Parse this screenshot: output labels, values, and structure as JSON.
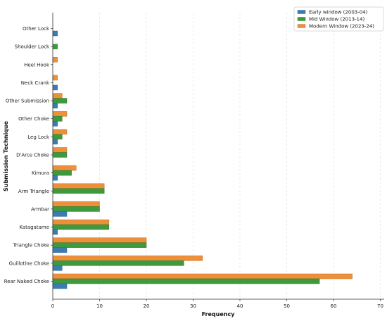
{
  "chart_data": {
    "type": "bar",
    "orientation": "horizontal",
    "title": "",
    "xlabel": "Frequency",
    "ylabel": "Submission Technique",
    "xlim": [
      0,
      70
    ],
    "xticks": [
      "0",
      "10",
      "20",
      "30",
      "40",
      "50",
      "60",
      "70"
    ],
    "grid": "vertical-dashed",
    "legend_position": "top-right",
    "categories": [
      "Other Lock",
      "Shoulder Lock",
      "Heel Hook",
      "Neck Crank",
      "Other Submission",
      "Other Choke",
      "Leg Lock",
      "D'Arce Choke",
      "Kimura",
      "Arm Triangle",
      "Armbar",
      "Katagatame",
      "Triangle Choke",
      "Guillotine Choke",
      "Rear Naked Choke"
    ],
    "series": [
      {
        "name": "Early window (2003-04)",
        "color": "#3b7db3",
        "values": [
          1,
          0,
          0,
          1,
          1,
          1,
          1,
          0,
          1,
          0,
          3,
          1,
          3,
          2,
          3
        ]
      },
      {
        "name": "Mid Window (2013-14)",
        "color": "#3e9a3e",
        "values": [
          0,
          1,
          0,
          0,
          3,
          2,
          2,
          3,
          4,
          11,
          10,
          12,
          20,
          28,
          57
        ]
      },
      {
        "name": "Modern Window (2023-24)",
        "color": "#ee8f3a",
        "values": [
          0,
          0,
          1,
          1,
          2,
          3,
          3,
          3,
          5,
          11,
          10,
          12,
          20,
          32,
          64
        ]
      }
    ]
  }
}
